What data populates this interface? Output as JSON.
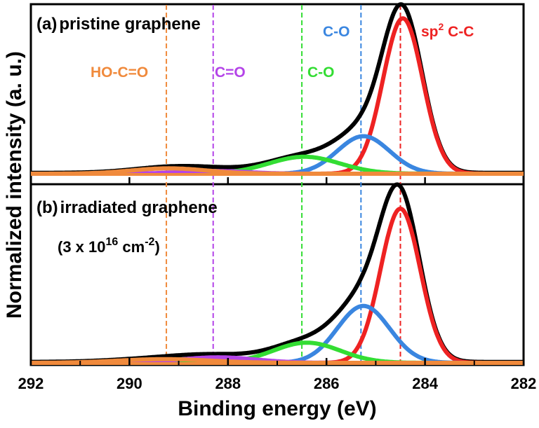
{
  "chart_data": {
    "type": "line",
    "title": "",
    "xlabel": "Binding energy (eV)",
    "ylabel": "Normalized intensity (a. u.)",
    "xlim": [
      292,
      282
    ],
    "x_ticks": [
      292,
      290,
      288,
      286,
      284,
      282
    ],
    "x_tick_labels": [
      "292",
      "290",
      "288",
      "286",
      "284",
      "282"
    ],
    "peak_lines": [
      {
        "name": "HO-C=O",
        "x": 289.25,
        "color": "#f08a3c"
      },
      {
        "name": "C=O",
        "x": 288.3,
        "color": "#b444e8"
      },
      {
        "name": "C-O",
        "x": 286.5,
        "color": "#33dd33"
      },
      {
        "name": "C-O",
        "x": 285.3,
        "color": "#3a86e0"
      },
      {
        "name": "sp2 C-C",
        "x": 284.5,
        "color": "#ee2222"
      }
    ],
    "peak_labels": [
      {
        "text": "HO-C=O",
        "color": "#f08a3c"
      },
      {
        "text": "C=O",
        "color": "#b444e8"
      },
      {
        "text": "C-O",
        "color": "#33dd33"
      },
      {
        "text": "C-O",
        "color": "#3a86e0"
      },
      {
        "text_main": "sp",
        "text_sup": "2",
        "text_rest": " C-C",
        "color": "#ee2222"
      }
    ],
    "panels": [
      {
        "label_letter": "(a)",
        "label_text": "pristine graphene",
        "label_sub": "",
        "peaks": [
          {
            "name": "sp2 C-C",
            "center": 284.45,
            "fwhm": 0.95,
            "height": 0.87,
            "color": "#ee2222"
          },
          {
            "name": "C-O",
            "center": 285.25,
            "fwhm": 1.25,
            "height": 0.21,
            "color": "#3a86e0"
          },
          {
            "name": "C-O",
            "center": 286.45,
            "fwhm": 1.7,
            "height": 0.095,
            "color": "#33dd33"
          },
          {
            "name": "C=O",
            "center": 288.3,
            "fwhm": 1.6,
            "height": 0.015,
            "color": "#b444e8"
          },
          {
            "name": "HO-C=O",
            "center": 289.2,
            "fwhm": 1.8,
            "height": 0.03,
            "color": "#f08a3c"
          }
        ],
        "envelope_color": "#000000"
      },
      {
        "label_letter": "(b)",
        "label_text": "irradiated graphene",
        "label_sub_open": "(3 x 10",
        "label_sub_sup1": "16",
        "label_sub_mid": " cm",
        "label_sub_sup2": "-2",
        "label_sub_close": ")",
        "peaks": [
          {
            "name": "sp2 C-C",
            "center": 284.5,
            "fwhm": 0.95,
            "height": 0.84,
            "color": "#ee2222"
          },
          {
            "name": "C-O",
            "center": 285.25,
            "fwhm": 1.25,
            "height": 0.31,
            "color": "#3a86e0"
          },
          {
            "name": "C-O",
            "center": 286.4,
            "fwhm": 1.6,
            "height": 0.11,
            "color": "#33dd33"
          },
          {
            "name": "C=O",
            "center": 288.2,
            "fwhm": 1.8,
            "height": 0.03,
            "color": "#b444e8"
          },
          {
            "name": "HO-C=O",
            "center": 289.3,
            "fwhm": 2.2,
            "height": 0.02,
            "color": "#f08a3c"
          }
        ],
        "envelope_color": "#000000"
      }
    ]
  }
}
